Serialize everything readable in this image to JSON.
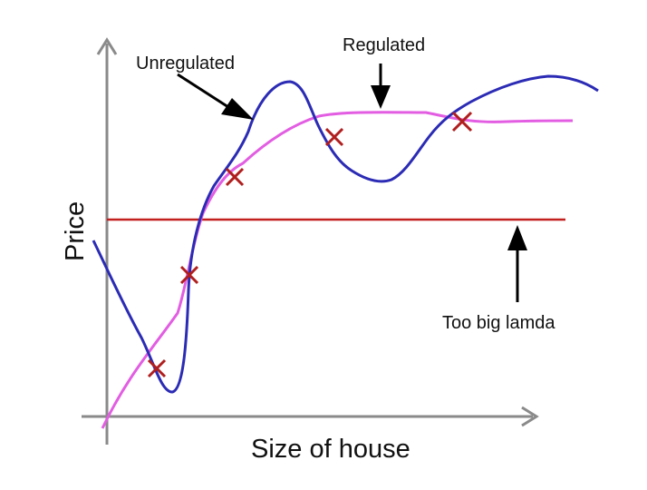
{
  "labels": {
    "unregulated": "Unregulated",
    "regulated": "Regulated",
    "too_big_lambda": "Too big lamda",
    "y_axis": "Price",
    "x_axis": "Size of house"
  },
  "colors": {
    "background": "#ffffff",
    "axes": "#8a8a8a",
    "unregulated_curve": "#2b2bb5",
    "regulated_curve": "#e25de2",
    "too_big_lambda_line": "#c21f1f",
    "data_point_marks": "#b01e1e",
    "annotation_arrows": "#000000"
  }
}
